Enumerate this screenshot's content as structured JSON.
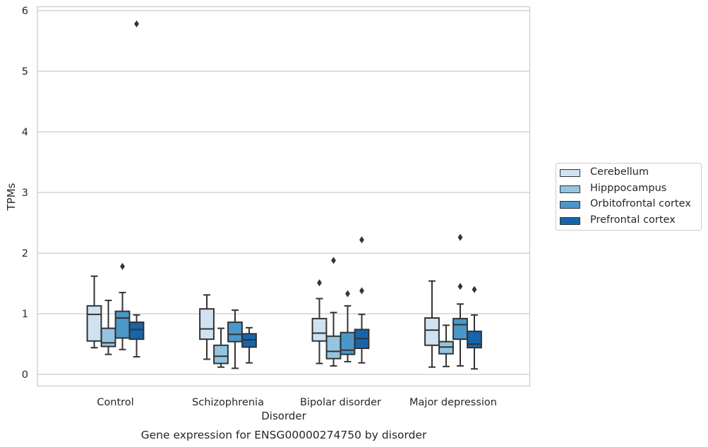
{
  "chart_data": {
    "type": "box",
    "title": "Gene expression for ENSG00000274750 by disorder",
    "xlabel": "Disorder",
    "ylabel": "TPMs",
    "ylim": [
      -0.19,
      6.1
    ],
    "yticks": [
      0,
      1,
      2,
      3,
      4,
      5,
      6
    ],
    "grid": true,
    "legend_position": "right",
    "categories": [
      "Control",
      "Schizophrenia",
      "Bipolar disorder",
      "Major depression"
    ],
    "series": [
      {
        "name": "Cerebellum",
        "color": "#d0e1f2",
        "boxes": [
          {
            "whisker_low": 0.44,
            "q1": 0.55,
            "median": 0.99,
            "q3": 1.13,
            "whisker_high": 1.62,
            "outliers": []
          },
          {
            "whisker_low": 0.25,
            "q1": 0.58,
            "median": 0.75,
            "q3": 1.08,
            "whisker_high": 1.31,
            "outliers": []
          },
          {
            "whisker_low": 0.18,
            "q1": 0.55,
            "median": 0.68,
            "q3": 0.92,
            "whisker_high": 1.25,
            "outliers": [
              1.51
            ]
          },
          {
            "whisker_low": 0.12,
            "q1": 0.48,
            "median": 0.73,
            "q3": 0.93,
            "whisker_high": 1.54,
            "outliers": []
          }
        ]
      },
      {
        "name": "Hipppocampus",
        "color": "#94c4df",
        "boxes": [
          {
            "whisker_low": 0.33,
            "q1": 0.46,
            "median": 0.52,
            "q3": 0.76,
            "whisker_high": 1.22,
            "outliers": []
          },
          {
            "whisker_low": 0.12,
            "q1": 0.18,
            "median": 0.3,
            "q3": 0.48,
            "whisker_high": 0.76,
            "outliers": []
          },
          {
            "whisker_low": 0.14,
            "q1": 0.26,
            "median": 0.38,
            "q3": 0.63,
            "whisker_high": 1.02,
            "outliers": [
              1.88
            ]
          },
          {
            "whisker_low": 0.13,
            "q1": 0.34,
            "median": 0.45,
            "q3": 0.54,
            "whisker_high": 0.81,
            "outliers": []
          }
        ]
      },
      {
        "name": "Orbitofrontal cortex",
        "color": "#4a98c9",
        "boxes": [
          {
            "whisker_low": 0.41,
            "q1": 0.6,
            "median": 0.93,
            "q3": 1.04,
            "whisker_high": 1.35,
            "outliers": [
              1.78
            ]
          },
          {
            "whisker_low": 0.1,
            "q1": 0.54,
            "median": 0.66,
            "q3": 0.86,
            "whisker_high": 1.06,
            "outliers": []
          },
          {
            "whisker_low": 0.21,
            "q1": 0.33,
            "median": 0.4,
            "q3": 0.69,
            "whisker_high": 1.13,
            "outliers": [
              1.33
            ]
          },
          {
            "whisker_low": 0.14,
            "q1": 0.58,
            "median": 0.82,
            "q3": 0.92,
            "whisker_high": 1.16,
            "outliers": [
              1.45,
              2.26
            ]
          }
        ]
      },
      {
        "name": "Prefrontal cortex",
        "color": "#1764ab",
        "boxes": [
          {
            "whisker_low": 0.29,
            "q1": 0.58,
            "median": 0.74,
            "q3": 0.86,
            "whisker_high": 0.98,
            "outliers": [
              5.78
            ]
          },
          {
            "whisker_low": 0.19,
            "q1": 0.45,
            "median": 0.57,
            "q3": 0.67,
            "whisker_high": 0.77,
            "outliers": []
          },
          {
            "whisker_low": 0.19,
            "q1": 0.43,
            "median": 0.59,
            "q3": 0.74,
            "whisker_high": 0.99,
            "outliers": [
              1.38,
              2.22
            ]
          },
          {
            "whisker_low": 0.09,
            "q1": 0.44,
            "median": 0.5,
            "q3": 0.71,
            "whisker_high": 0.98,
            "outliers": [
              1.4
            ]
          }
        ]
      }
    ]
  }
}
